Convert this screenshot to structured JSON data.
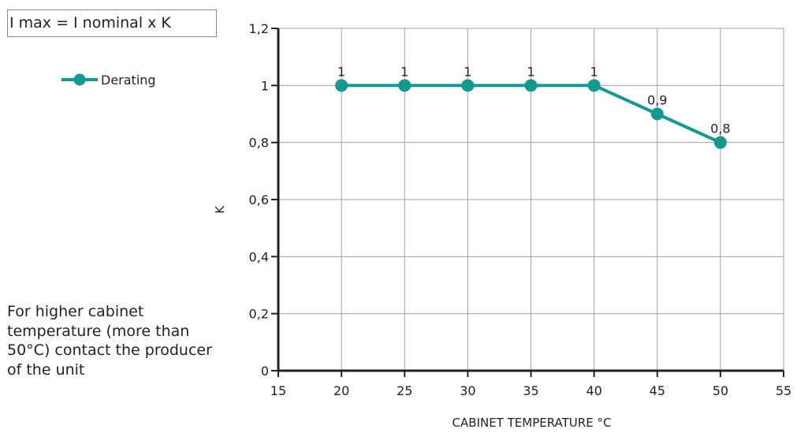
{
  "formula": "I max = I nominal x K",
  "note": "For higher cabinet temperature (more than 50°C) contact the producer of the unit",
  "colors": {
    "series": "#14998e",
    "grid": "#a0a0a0",
    "axis": "#222222"
  },
  "chart_data": {
    "type": "line",
    "title": "",
    "xlabel": "CABINET TEMPERATURE °C",
    "ylabel": "K",
    "xlim": [
      15,
      55
    ],
    "ylim": [
      0,
      1.2
    ],
    "x_ticks": [
      15,
      20,
      25,
      30,
      35,
      40,
      45,
      50,
      55
    ],
    "x_tick_labels": [
      "15",
      "20",
      "25",
      "30",
      "35",
      "40",
      "45",
      "50",
      "55"
    ],
    "y_ticks": [
      0,
      0.2,
      0.4,
      0.6,
      0.8,
      1,
      1.2
    ],
    "y_tick_labels": [
      "0",
      "0,2",
      "0,4",
      "0,6",
      "0,8",
      "1",
      "1,2"
    ],
    "grid": true,
    "legend_position": "top-left",
    "series": [
      {
        "name": "Derating",
        "x": [
          20,
          25,
          30,
          35,
          40,
          45,
          50
        ],
        "y": [
          1,
          1,
          1,
          1,
          1,
          0.9,
          0.8
        ],
        "labels": [
          "1",
          "1",
          "1",
          "1",
          "1",
          "0,9",
          "0,8"
        ]
      }
    ]
  }
}
